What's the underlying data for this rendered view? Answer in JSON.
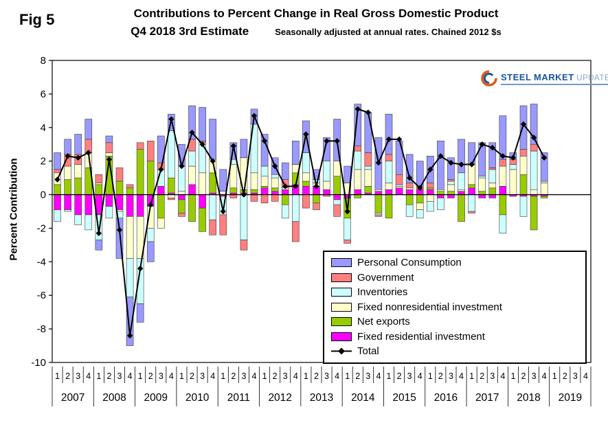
{
  "fig_label": "Fig 5",
  "header": {
    "title": "Contributions to Percent Change in Real Gross Domestic Product",
    "subtitle": "Q4 2018 3rd Estimate",
    "subtitle_note": "Seasonally adjusted at annual rates. Chained 2012 $s"
  },
  "ylabel": "Percent Contribution",
  "logo": {
    "steel": "STEEL",
    "market": "MARKET",
    "update": "UPDATE"
  },
  "chart_data": {
    "type": "bar",
    "stacked": true,
    "overlay_line": "Total",
    "grid": false,
    "legend_position": "inside-bottom-right",
    "ylim": [
      -10,
      8
    ],
    "ytick_step": 2,
    "quarters_per_year": [
      "1",
      "2",
      "3",
      "4"
    ],
    "years": [
      "2007",
      "2008",
      "2009",
      "2010",
      "2011",
      "2012",
      "2013",
      "2014",
      "2015",
      "2016",
      "2017",
      "2018",
      "2019"
    ],
    "note": "Bars cover 2007Q1-2018Q4; 2019 quarters are empty placeholders",
    "stack_order": [
      "fri",
      "nx",
      "fnr",
      "inv",
      "gov",
      "pc"
    ],
    "series": [
      {
        "key": "pc",
        "name": "Personal Consumption",
        "color": "#9999FF",
        "values": [
          1.0,
          0.9,
          1.2,
          1.2,
          -0.6,
          0.4,
          -2.4,
          -2.9,
          -1.1,
          -1.2,
          1.6,
          1.0,
          1.3,
          2.0,
          2.0,
          2.4,
          1.3,
          1.0,
          1.1,
          0.9,
          1.9,
          1.0,
          1.0,
          1.4,
          1.9,
          0.6,
          1.4,
          2.5,
          1.0,
          2.5,
          2.4,
          3.1,
          2.4,
          2.0,
          1.7,
          1.5,
          1.6,
          2.9,
          1.3,
          2.0,
          1.3,
          2.0,
          1.5,
          2.6,
          0.4,
          2.6,
          2.4,
          1.7
        ]
      },
      {
        "key": "gov",
        "name": "Government",
        "color": "#FF8080",
        "values": [
          0.2,
          0.7,
          0.6,
          0.8,
          0.5,
          0.6,
          0.8,
          0.2,
          0.4,
          1.2,
          0.4,
          -0.1,
          -0.2,
          0.7,
          0.1,
          -0.9,
          -1.2,
          -0.2,
          -0.6,
          -0.4,
          -0.5,
          -0.4,
          0.5,
          -1.2,
          -0.8,
          -0.4,
          -0.1,
          -0.7,
          -0.2,
          0.3,
          0.8,
          -0.1,
          0.4,
          0.6,
          0.3,
          0.2,
          0.3,
          0.0,
          0.1,
          0.0,
          -0.1,
          0.0,
          0.1,
          0.4,
          0.3,
          0.4,
          0.4,
          0.0
        ]
      },
      {
        "key": "inv",
        "name": "Inventories",
        "color": "#CCFFFF",
        "values": [
          -0.7,
          -0.1,
          -0.6,
          -0.9,
          -1.5,
          -0.7,
          -0.4,
          -2.3,
          -2.7,
          -0.8,
          1.0,
          2.8,
          1.5,
          0.9,
          1.8,
          -1.5,
          -1.1,
          0.3,
          -2.7,
          2.9,
          0.6,
          0.2,
          -0.8,
          -1.6,
          1.2,
          0.2,
          1.2,
          -0.3,
          -1.3,
          1.1,
          0.2,
          -0.1,
          1.3,
          0.1,
          -0.7,
          -0.5,
          -0.6,
          -0.7,
          0.2,
          1.0,
          -1.0,
          0.1,
          0.8,
          -1.1,
          0.3,
          -1.2,
          2.3,
          0.1
        ]
      },
      {
        "key": "fnr",
        "name": "Fixed nonresidential investment",
        "color": "#FFFFCC",
        "values": [
          0.7,
          0.8,
          0.8,
          0.9,
          0.1,
          0.2,
          -0.1,
          -2.5,
          -2.5,
          -1.3,
          -0.6,
          -0.2,
          0.2,
          1.1,
          1.3,
          0.8,
          0.2,
          1.4,
          1.9,
          1.0,
          0.6,
          0.6,
          0.1,
          0.5,
          0.5,
          0.2,
          0.5,
          0.9,
          0.7,
          1.2,
          1.0,
          0.1,
          0.4,
          0.1,
          0.1,
          -0.4,
          -0.4,
          0.1,
          0.4,
          0.1,
          1.2,
          0.8,
          0.3,
          1.2,
          1.5,
          1.1,
          0.3,
          0.7
        ]
      },
      {
        "key": "nx",
        "name": "Net exports",
        "color": "#99CC00",
        "values": [
          0.6,
          0.9,
          1.0,
          1.6,
          0.6,
          2.3,
          0.8,
          0.4,
          2.7,
          2.0,
          -1.4,
          0.9,
          -0.8,
          -1.6,
          -1.4,
          1.2,
          0.0,
          0.3,
          0.2,
          0.2,
          0.1,
          0.2,
          -0.6,
          0.7,
          0.3,
          -0.5,
          0.0,
          1.1,
          -1.2,
          -0.2,
          0.4,
          -1.1,
          -1.4,
          0.0,
          -0.6,
          -0.5,
          0.1,
          0.2,
          0.2,
          -1.6,
          0.2,
          0.2,
          0.4,
          -1.2,
          0.0,
          1.2,
          -2.0,
          -0.1
        ]
      },
      {
        "key": "fri",
        "name": "Fixed residential investment",
        "color": "#FF00FF",
        "values": [
          -0.9,
          -0.9,
          -1.2,
          -1.2,
          -1.2,
          -0.7,
          -0.9,
          -1.3,
          -1.3,
          -0.7,
          0.5,
          0.1,
          -0.3,
          0.6,
          -0.8,
          0.1,
          -0.1,
          0.1,
          0.1,
          0.1,
          0.4,
          0.2,
          0.3,
          0.6,
          0.5,
          0.5,
          0.3,
          -0.3,
          -0.2,
          0.3,
          0.1,
          0.2,
          0.3,
          0.4,
          0.3,
          0.3,
          0.3,
          -0.2,
          -0.2,
          0.2,
          0.4,
          -0.2,
          -0.2,
          0.5,
          -0.1,
          -0.1,
          -0.1,
          -0.1
        ]
      }
    ],
    "total": {
      "name": "Total",
      "color": "#000000",
      "values": [
        0.9,
        2.3,
        2.2,
        2.5,
        -2.3,
        2.1,
        -2.1,
        -8.4,
        -4.4,
        -0.6,
        1.5,
        4.5,
        1.7,
        3.7,
        3.0,
        2.0,
        -1.0,
        2.9,
        0.0,
        4.7,
        3.2,
        1.7,
        0.5,
        0.5,
        3.6,
        0.5,
        3.2,
        3.2,
        -1.0,
        5.1,
        4.9,
        1.9,
        3.3,
        3.3,
        1.0,
        0.4,
        1.5,
        2.3,
        1.9,
        1.8,
        1.8,
        3.0,
        2.8,
        2.3,
        2.2,
        4.2,
        3.4,
        2.2
      ]
    }
  }
}
